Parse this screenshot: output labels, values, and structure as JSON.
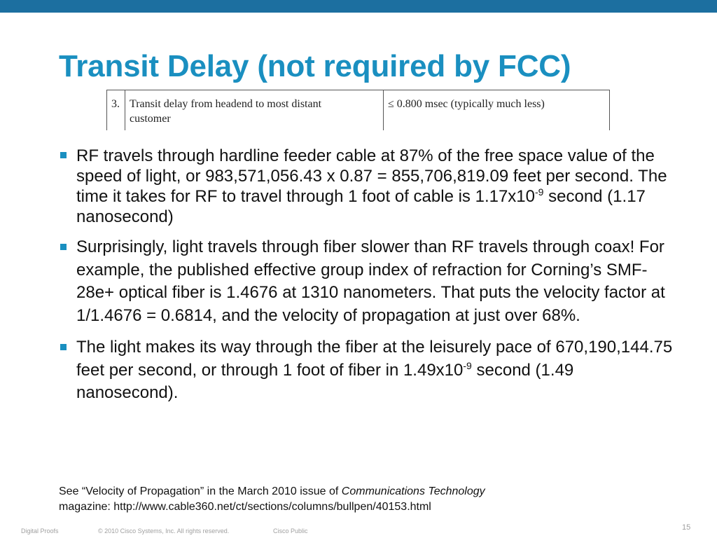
{
  "slide": {
    "title": "Transit Delay (not required by FCC)",
    "spec_table": {
      "number": "3.",
      "description_line1": "Transit delay from headend to most distant",
      "description_line2": "customer",
      "value": "≤ 0.800 msec (typically much less)"
    },
    "bullets": [
      {
        "text_before_sup": "RF travels through hardline feeder cable at 87% of the free space value of the speed of light, or 983,571,056.43 x 0.87 = 855,706,819.09 feet per second. The time it takes for RF to travel through 1 foot of cable is 1.17x10",
        "sup": "-9",
        "text_after_sup": " second (1.17 nanosecond)"
      },
      {
        "text": "Surprisingly, light travels through fiber slower than RF travels through coax! For example, the published effective group index of refraction for Corning’s SMF-28e+ optical fiber is 1.4676 at 1310 nanometers. That puts the velocity factor at 1/1.4676 = 0.6814, and the velocity of propagation at just over 68%."
      },
      {
        "text_before_sup": "The light makes its way through the fiber at the leisurely pace of 670,190,144.75 feet per second, or through 1 foot of fiber in 1.49x10",
        "sup": "-9",
        "text_after_sup": " second (1.49 nanosecond)."
      }
    ],
    "footnote": {
      "prefix": "See “Velocity of Propagation” in the March 2010 issue of ",
      "publication": "Communications Technology",
      "line2": "magazine: http://www.cable360.net/ct/sections/columns/bullpen/40153.html"
    },
    "footer": {
      "left": "Digital Proofs",
      "copyright": "© 2010 Cisco Systems, Inc. All rights reserved.",
      "classification": "Cisco Public",
      "page_number": "15"
    },
    "colors": {
      "accent": "#1a8fc0",
      "top_bar": "#1c6fa0",
      "footer_text": "#a0a0a0"
    }
  }
}
